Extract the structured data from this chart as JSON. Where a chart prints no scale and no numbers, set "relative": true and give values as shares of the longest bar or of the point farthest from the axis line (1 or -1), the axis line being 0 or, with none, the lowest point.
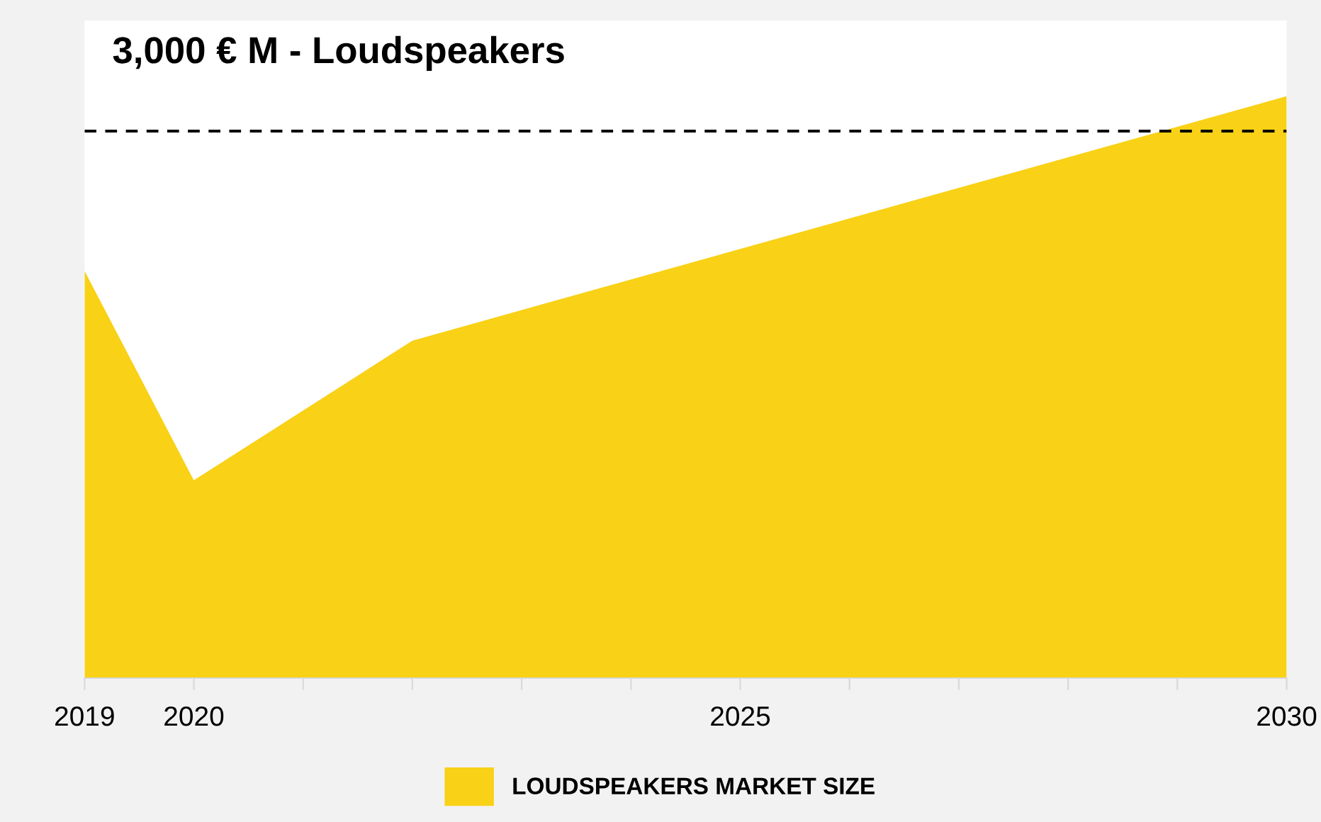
{
  "chart_data": {
    "type": "area",
    "title": "3,000 € M - Loudspeakers",
    "relative": true,
    "x": [
      2019,
      2020,
      2022,
      2030
    ],
    "series": [
      {
        "name": "LOUDSPEAKERS MARKET SIZE",
        "color": "#f9d116",
        "values": [
          0.7,
          0.34,
          0.58,
          1.0
        ]
      }
    ],
    "xlim": [
      2019,
      2030
    ],
    "xticks": [
      2019,
      2020,
      {
        "value": 2021,
        "label": null
      },
      {
        "value": 2022,
        "label": null
      },
      {
        "value": 2023,
        "label": null
      },
      {
        "value": 2024,
        "label": null
      },
      2025,
      {
        "value": 2026,
        "label": null
      },
      {
        "value": 2027,
        "label": null
      },
      {
        "value": 2028,
        "label": null
      },
      {
        "value": 2029,
        "label": null
      },
      2030
    ],
    "ref_lines": [
      {
        "axis": "y",
        "value": 0.94,
        "color": "#000000",
        "line_style": "dashed"
      }
    ],
    "legend": "bottom"
  }
}
